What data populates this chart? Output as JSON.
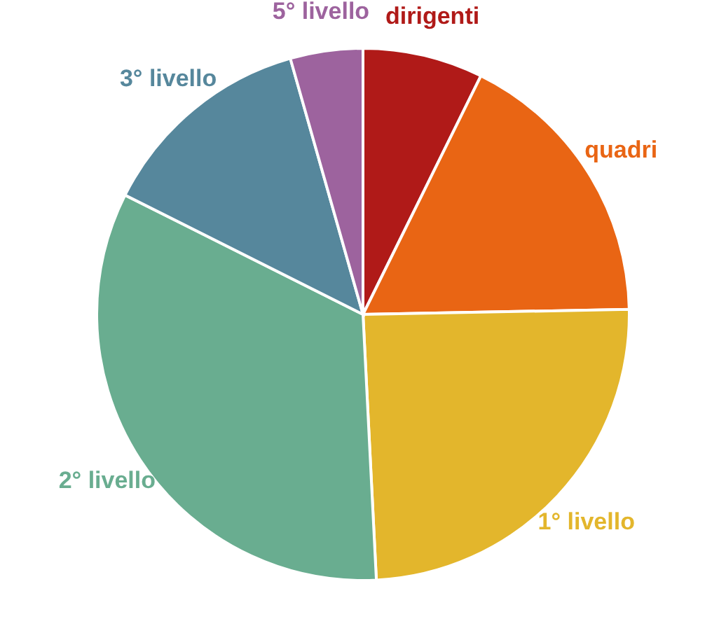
{
  "chart_data": {
    "type": "pie",
    "categories": [
      "dirigenti",
      "quadri",
      "1° livello",
      "2° livello",
      "3° livello",
      "5° livello"
    ],
    "values": [
      7.3,
      17.4,
      24.5,
      33.2,
      13.2,
      4.4
    ],
    "colors": [
      "#b01a18",
      "#e96514",
      "#e3b62c",
      "#69ad90",
      "#56879c",
      "#9d639e"
    ],
    "legend": false
  }
}
